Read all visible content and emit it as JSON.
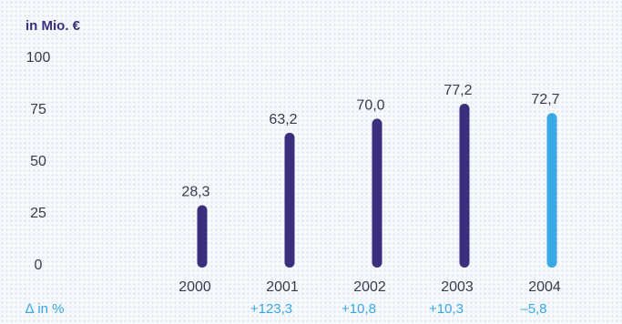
{
  "chart_data": {
    "type": "bar",
    "ylabel": "in Mio. €",
    "ylim": [
      0,
      100
    ],
    "yticks": [
      "100",
      "75",
      "50",
      "25",
      "0"
    ],
    "categories": [
      "2000",
      "2001",
      "2002",
      "2003",
      "2004"
    ],
    "values": [
      28.3,
      63.2,
      70.0,
      77.2,
      72.7
    ],
    "value_labels": [
      "28,3",
      "63,2",
      "70,0",
      "77,2",
      "72,7"
    ],
    "delta_label": "∆ in %",
    "deltas": [
      "",
      "+123,3",
      "+10,8",
      "+10,3",
      "–5,8"
    ],
    "bar_colors": [
      "#3b2f7d",
      "#3b2f7d",
      "#3b2f7d",
      "#3b2f7d",
      "#3aa7e6"
    ],
    "grid": false
  }
}
